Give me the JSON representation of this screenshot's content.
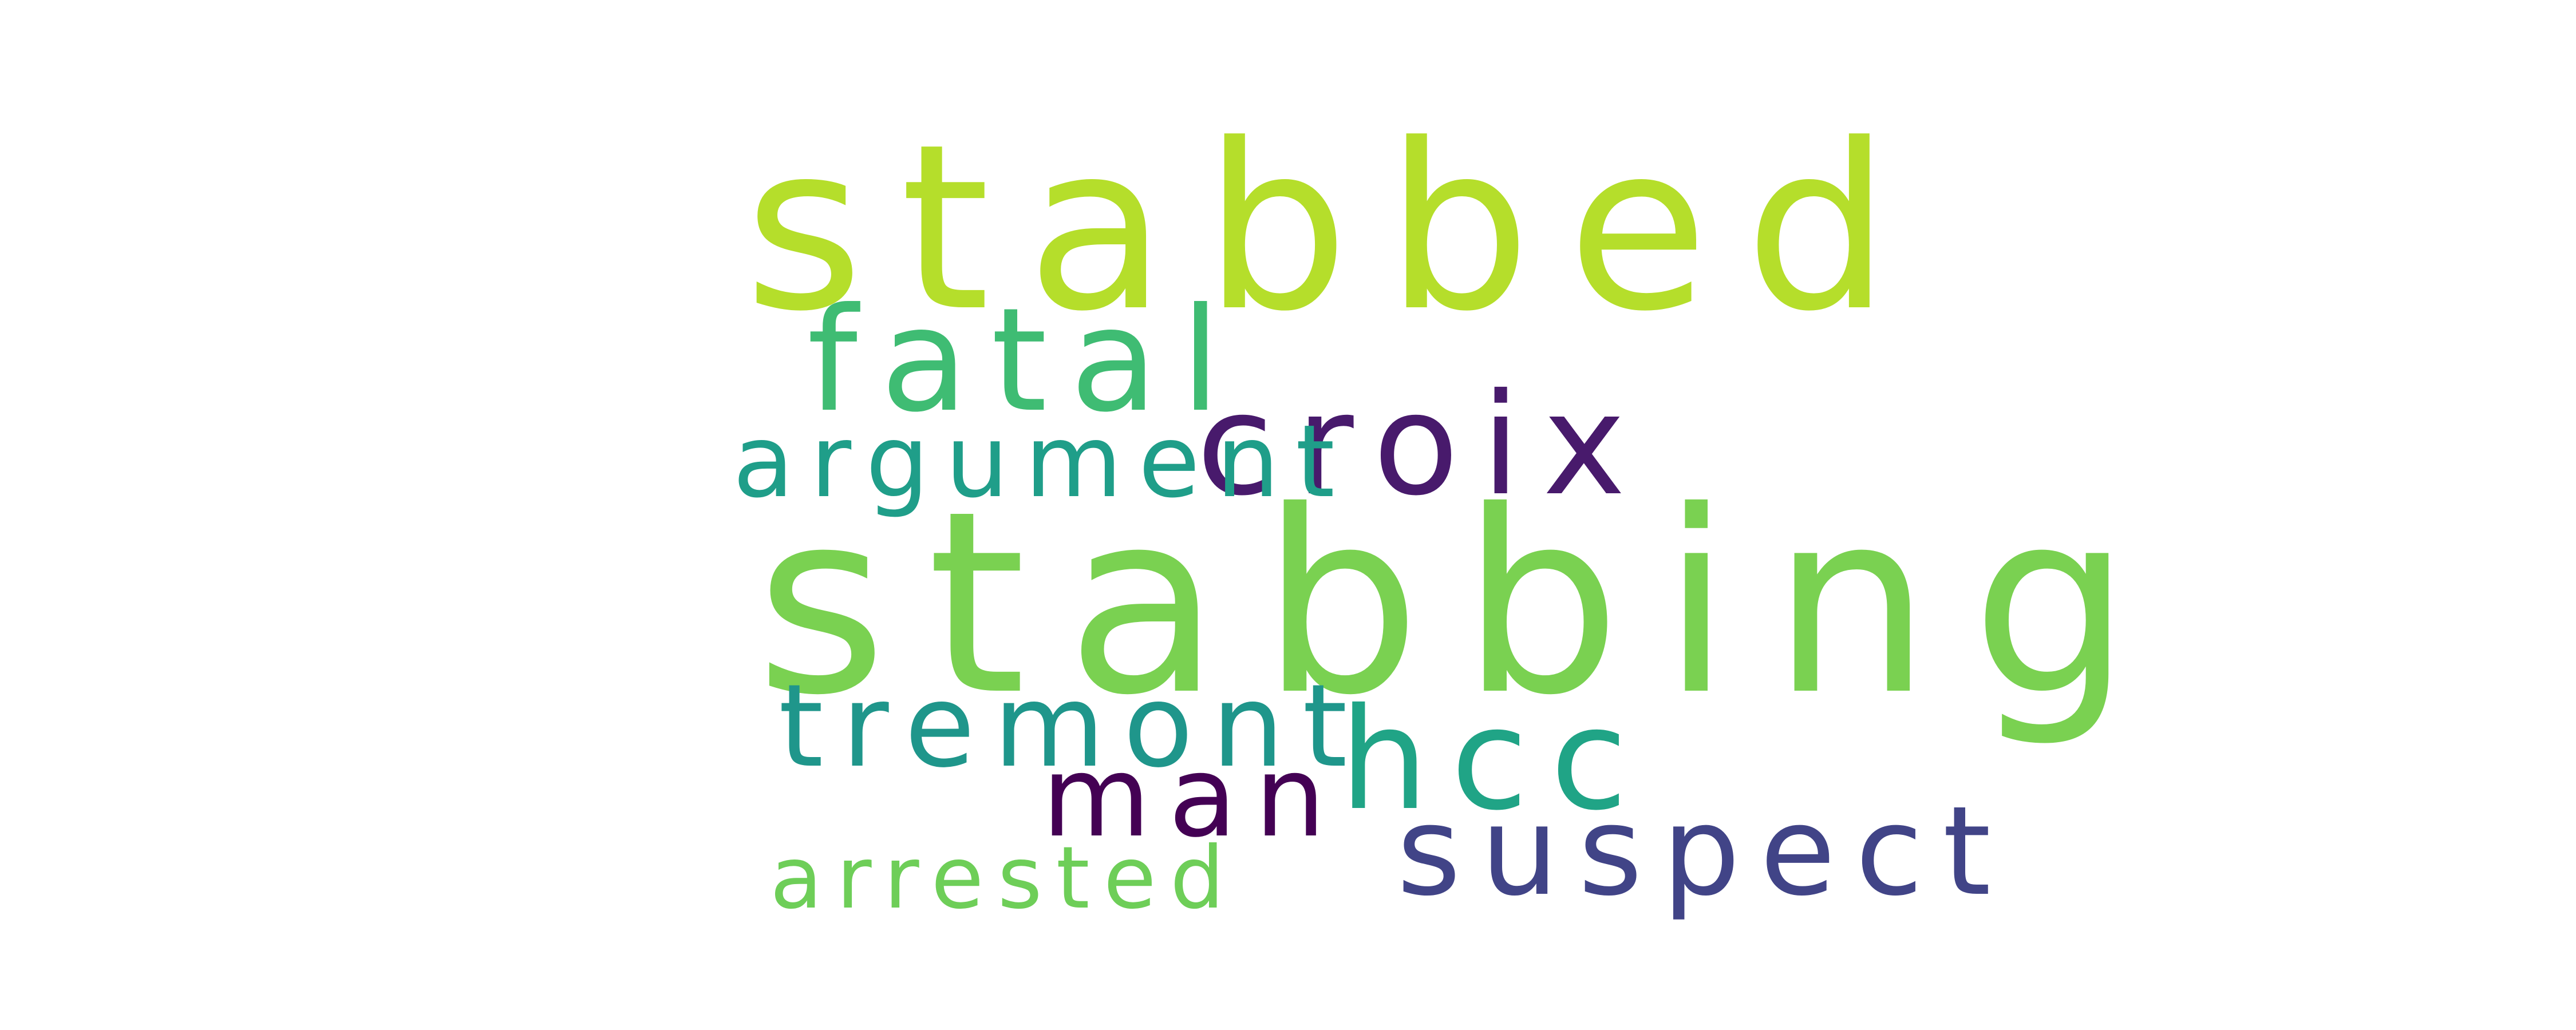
{
  "words": [
    {
      "text": "stabbed",
      "color": "#b5de2b"
    },
    {
      "text": "fatal",
      "color": "#3fbc73"
    },
    {
      "text": "croix",
      "color": "#481a6c"
    },
    {
      "text": "argument",
      "color": "#1f9e89"
    },
    {
      "text": "stabbing",
      "color": "#7ad151"
    },
    {
      "text": "tremont",
      "color": "#1f968b"
    },
    {
      "text": "hcc",
      "color": "#20a486"
    },
    {
      "text": "man",
      "color": "#440154"
    },
    {
      "text": "suspect",
      "color": "#414487"
    },
    {
      "text": "arrested",
      "color": "#6ece58"
    }
  ]
}
